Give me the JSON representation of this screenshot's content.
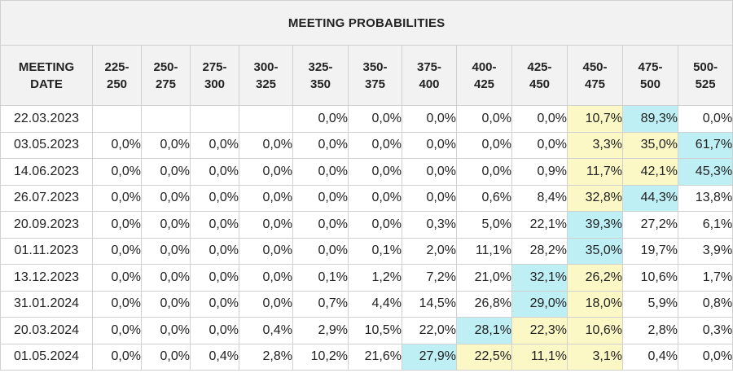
{
  "title": "MEETING PROBABILITIES",
  "header": {
    "date_label": [
      "MEETING",
      "DATE"
    ],
    "ranges": [
      [
        "225-",
        "250"
      ],
      [
        "250-",
        "275"
      ],
      [
        "275-",
        "300"
      ],
      [
        "300-",
        "325"
      ],
      [
        "325-",
        "350"
      ],
      [
        "350-",
        "375"
      ],
      [
        "375-",
        "400"
      ],
      [
        "400-",
        "425"
      ],
      [
        "425-",
        "450"
      ],
      [
        "450-",
        "475"
      ],
      [
        "475-",
        "500"
      ],
      [
        "500-",
        "525"
      ]
    ]
  },
  "colors": {
    "yellow_highlight": "#fbf8c6",
    "blue_highlight": "#bdeff5",
    "header_bg": "#f2f2f2",
    "border": "#d0d0d0"
  },
  "rows": [
    {
      "date": "22.03.2023",
      "values": [
        "",
        "",
        "",
        "",
        "0,0%",
        "0,0%",
        "0,0%",
        "0,0%",
        "0,0%",
        "10,7%",
        "89,3%",
        "0,0%"
      ],
      "yellow": [
        9
      ],
      "blue": [
        10
      ]
    },
    {
      "date": "03.05.2023",
      "values": [
        "0,0%",
        "0,0%",
        "0,0%",
        "0,0%",
        "0,0%",
        "0,0%",
        "0,0%",
        "0,0%",
        "0,0%",
        "3,3%",
        "35,0%",
        "61,7%"
      ],
      "yellow": [
        9,
        10
      ],
      "blue": [
        11
      ]
    },
    {
      "date": "14.06.2023",
      "values": [
        "0,0%",
        "0,0%",
        "0,0%",
        "0,0%",
        "0,0%",
        "0,0%",
        "0,0%",
        "0,0%",
        "0,9%",
        "11,7%",
        "42,1%",
        "45,3%"
      ],
      "yellow": [
        9,
        10
      ],
      "blue": [
        11
      ]
    },
    {
      "date": "26.07.2023",
      "values": [
        "0,0%",
        "0,0%",
        "0,0%",
        "0,0%",
        "0,0%",
        "0,0%",
        "0,0%",
        "0,6%",
        "8,4%",
        "32,8%",
        "44,3%",
        "13,8%"
      ],
      "yellow": [
        9
      ],
      "blue": [
        10
      ]
    },
    {
      "date": "20.09.2023",
      "values": [
        "0,0%",
        "0,0%",
        "0,0%",
        "0,0%",
        "0,0%",
        "0,0%",
        "0,3%",
        "5,0%",
        "22,1%",
        "39,3%",
        "27,2%",
        "6,1%"
      ],
      "yellow": [],
      "blue": [
        9
      ]
    },
    {
      "date": "01.11.2023",
      "values": [
        "0,0%",
        "0,0%",
        "0,0%",
        "0,0%",
        "0,0%",
        "0,1%",
        "2,0%",
        "11,1%",
        "28,2%",
        "35,0%",
        "19,7%",
        "3,9%"
      ],
      "yellow": [],
      "blue": [
        9
      ]
    },
    {
      "date": "13.12.2023",
      "values": [
        "0,0%",
        "0,0%",
        "0,0%",
        "0,0%",
        "0,1%",
        "1,2%",
        "7,2%",
        "21,0%",
        "32,1%",
        "26,2%",
        "10,6%",
        "1,7%"
      ],
      "yellow": [
        9
      ],
      "blue": [
        8
      ]
    },
    {
      "date": "31.01.2024",
      "values": [
        "0,0%",
        "0,0%",
        "0,0%",
        "0,0%",
        "0,7%",
        "4,4%",
        "14,5%",
        "26,8%",
        "29,0%",
        "18,0%",
        "5,9%",
        "0,8%"
      ],
      "yellow": [
        9
      ],
      "blue": [
        8
      ]
    },
    {
      "date": "20.03.2024",
      "values": [
        "0,0%",
        "0,0%",
        "0,0%",
        "0,4%",
        "2,9%",
        "10,5%",
        "22,0%",
        "28,1%",
        "22,3%",
        "10,6%",
        "2,8%",
        "0,3%"
      ],
      "yellow": [
        8,
        9
      ],
      "blue": [
        7
      ]
    },
    {
      "date": "01.05.2024",
      "values": [
        "0,0%",
        "0,0%",
        "0,4%",
        "2,8%",
        "10,2%",
        "21,6%",
        "27,9%",
        "22,5%",
        "11,1%",
        "3,1%",
        "0,4%",
        "0,0%"
      ],
      "yellow": [
        7,
        8,
        9
      ],
      "blue": [
        6
      ]
    }
  ]
}
